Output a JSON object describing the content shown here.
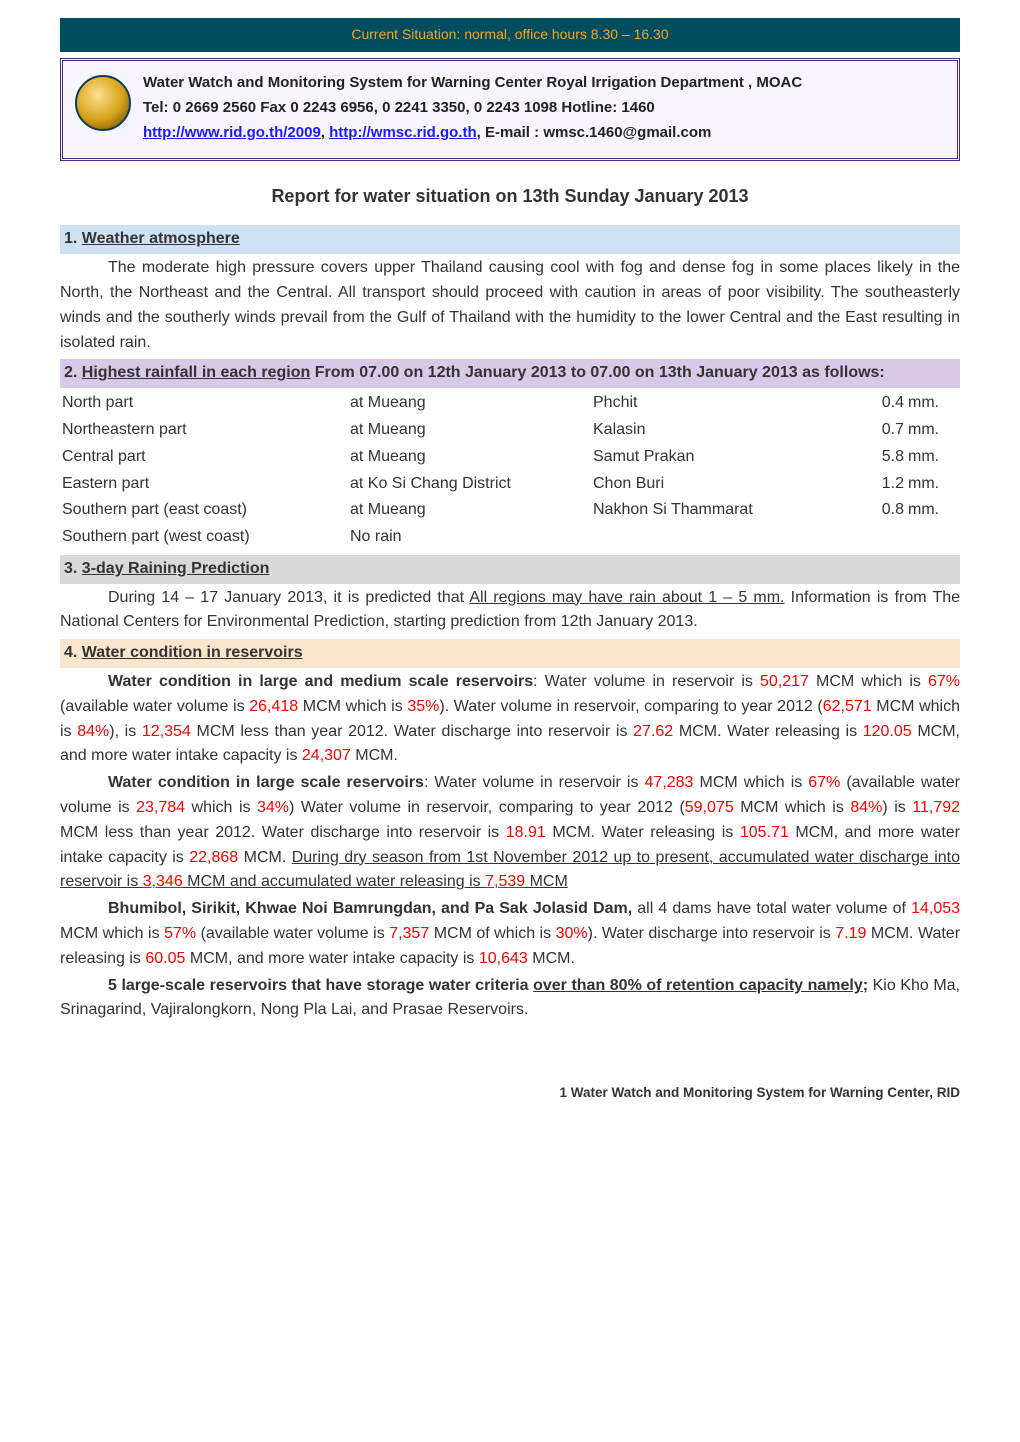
{
  "banner": {
    "text": "Current Situation: normal, office hours 8.30 – 16.30"
  },
  "header": {
    "line1": "Water Watch and Monitoring System for Warning Center Royal Irrigation Department , MOAC",
    "line2": "Tel:  0 2669 2560 Fax 0 2243 6956, 0 2241 3350, 0 2243 1098 Hotline:  1460",
    "url1": "http://www.rid.go.th/2009",
    "url2": "http://wmsc.rid.go.th",
    "email_prefix": ", E-mail : ",
    "email": "wmsc.1460@gmail.com"
  },
  "title": "Report for water situation on 13th Sunday January 2013",
  "sections": {
    "s1": {
      "num": "1. ",
      "label": "Weather atmosphere"
    },
    "s2": {
      "num": "2. ",
      "label": "Highest rainfall in each region",
      "tail": " From 07.00 on 12th January 2013 to 07.00 on 13th January 2013 as follows:"
    },
    "s3": {
      "num": "3. ",
      "label": "3-day Raining Prediction"
    },
    "s4": {
      "num": "4. ",
      "label": "Water condition in reservoirs"
    }
  },
  "weather_para": "The moderate high pressure covers upper Thailand causing cool with fog and dense fog in some places likely in the North, the Northeast and the Central. All transport should proceed with caution in areas of poor visibility. The southeasterly winds and the southerly winds prevail from the Gulf of Thailand with the humidity to the lower Central and the East resulting in isolated rain.",
  "rain_rows": [
    {
      "region": "North part",
      "at": "at Mueang",
      "place": "Phchit",
      "val": "0.4",
      "unit": "mm."
    },
    {
      "region": "Northeastern part",
      "at": "at Mueang",
      "place": "Kalasin",
      "val": "0.7",
      "unit": "mm."
    },
    {
      "region": "Central part",
      "at": "at Mueang",
      "place": "Samut Prakan",
      "val": "5.8",
      "unit": "mm."
    },
    {
      "region": "Eastern part",
      "at": "at Ko Si Chang District",
      "place": "Chon Buri",
      "val": "1.2",
      "unit": "mm."
    },
    {
      "region": "Southern part (east coast)",
      "at": "at Mueang",
      "place": "Nakhon Si Thammarat",
      "val": "0.8",
      "unit": "mm."
    },
    {
      "region": "Southern part (west coast)",
      "at": "No rain",
      "place": "",
      "val": "",
      "unit": ""
    }
  ],
  "prediction": {
    "pre": "During 14 – 17 January 2013, it is predicted that ",
    "mid": "All regions may have rain about 1 – 5 mm.",
    "post": "  Information is from The National Centers for Environmental Prediction, starting prediction from 12th January 2013."
  },
  "res": {
    "p1": {
      "lead": "Water condition in large and medium scale reservoirs",
      "a": ": Water volume in reservoir is ",
      "v1": "50,217",
      "b": " MCM which is ",
      "v2": "67%",
      "c": " (available water volume is ",
      "v3": "26,418",
      "d": " MCM which is ",
      "v4": "35%",
      "e": "). Water volume in reservoir, comparing to year 2012 (",
      "v5": "62,571",
      "f": " MCM which is ",
      "v6": "84%",
      "g": "), is ",
      "v7": "12,354",
      "h": " MCM less than year 2012. Water discharge into reservoir is ",
      "v8": "27.62",
      "i": " MCM. Water releasing is ",
      "v9": "120.05",
      "j": " MCM, and more water intake capacity is ",
      "v10": "24,307",
      "k": " MCM."
    },
    "p2": {
      "lead": "Water condition in large scale reservoirs",
      "a": ": Water volume in reservoir is ",
      "v1": "47,283",
      "b": " MCM which is ",
      "v2": "67%",
      "c": " (available water volume is ",
      "v3": "23,784",
      "d": " which is ",
      "v4": "34%",
      "e": ") Water volume in reservoir, comparing to year 2012 (",
      "v5": "59,075",
      "f": " MCM which is ",
      "v6": "84%",
      "g": ") is ",
      "v7": "11,792",
      "h": " MCM less than year 2012. Water discharge into reservoir is ",
      "v8": "18.91",
      "i": " MCM.  Water releasing is ",
      "v9": "105.71",
      "j": " MCM, and more water intake capacity is ",
      "v10": "22,868",
      "k": " MCM. ",
      "dry_pre": "During dry season from 1st November 2012 up to present, accumulated water discharge into reservoir is ",
      "dry_v1": "3,346",
      "dry_mid": " MCM and accumulated water releasing is ",
      "dry_v2": "7,539",
      "dry_post": " MCM"
    },
    "p3": {
      "lead": "Bhumibol, Sirikit, Khwae Noi Bamrungdan, and Pa Sak Jolasid Dam,",
      "a": " all 4 dams have total water volume of ",
      "v1": "14,053",
      "b": " MCM which is ",
      "v2": "57%",
      "c": " (available water volume is ",
      "v3": "7,357",
      "d": " MCM of which is ",
      "v4": "30%",
      "e": "). Water discharge into reservoir is ",
      "v5": "7.19",
      "f": " MCM. Water releasing is ",
      "v6": "60.05",
      "g": " MCM, and more water intake capacity is ",
      "v7": "10,643",
      "h": " MCM."
    },
    "p4": {
      "lead": "5 large-scale reservoirs that have storage water criteria ",
      "u": "over than 80% of retention capacity namely;",
      "body": "    Kio Kho Ma, Srinagarind, Vajiralongkorn, Nong Pla Lai, and Prasae Reservoirs."
    }
  },
  "footer": "1 Water Watch and Monitoring System for Warning Center, RID",
  "colors": {
    "banner_bg": "#004d60",
    "banner_text": "#f5a623",
    "header_border": "#4a2d7a",
    "link": "#1a1aff",
    "sec_blue": "#cfe2f3",
    "sec_purple": "#d9c9e8",
    "sec_grey": "#d9d9d9",
    "sec_orange": "#fce5cd",
    "highlight": "#ff0000"
  }
}
